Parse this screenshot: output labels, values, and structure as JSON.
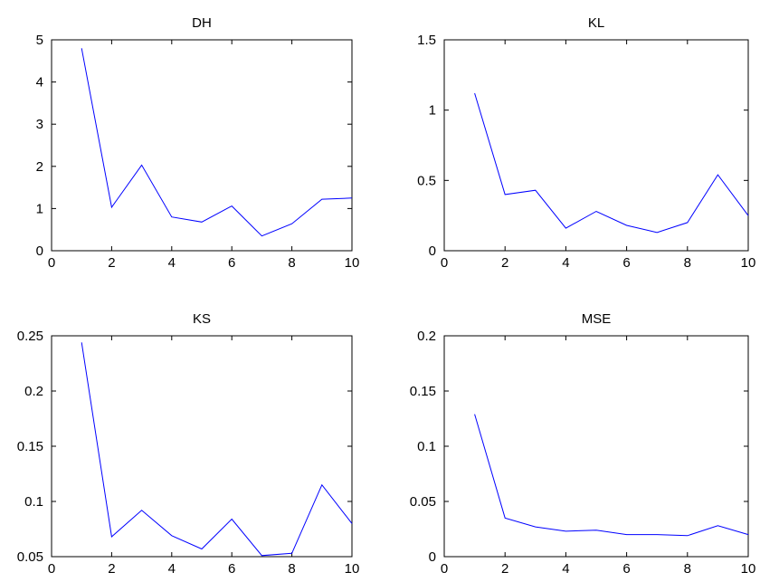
{
  "chart_data": [
    {
      "type": "line",
      "title": "DH",
      "xlabel": "",
      "ylabel": "",
      "xlim": [
        0,
        10
      ],
      "ylim": [
        0,
        5
      ],
      "xticks": [
        "0",
        "2",
        "4",
        "6",
        "8",
        "10"
      ],
      "yticks": [
        "0",
        "1",
        "2",
        "3",
        "4",
        "5"
      ],
      "series": [
        {
          "x": [
            1,
            2,
            3,
            4,
            5,
            6,
            7,
            8,
            9,
            10
          ],
          "y": [
            4.8,
            1.03,
            2.03,
            0.8,
            0.68,
            1.06,
            0.35,
            0.64,
            1.22,
            1.25
          ]
        }
      ],
      "color": "#0000ff"
    },
    {
      "type": "line",
      "title": "KL",
      "xlabel": "",
      "ylabel": "",
      "xlim": [
        0,
        10
      ],
      "ylim": [
        0,
        1.5
      ],
      "xticks": [
        "0",
        "2",
        "4",
        "6",
        "8",
        "10"
      ],
      "yticks": [
        "0",
        "0.5",
        "1",
        "1.5"
      ],
      "series": [
        {
          "x": [
            1,
            2,
            3,
            4,
            5,
            6,
            7,
            8,
            9,
            10
          ],
          "y": [
            1.12,
            0.4,
            0.43,
            0.16,
            0.28,
            0.18,
            0.13,
            0.2,
            0.54,
            0.25
          ]
        }
      ],
      "color": "#0000ff"
    },
    {
      "type": "line",
      "title": "KS",
      "xlabel": "",
      "ylabel": "",
      "xlim": [
        0,
        10
      ],
      "ylim": [
        0.05,
        0.25
      ],
      "xticks": [
        "0",
        "2",
        "4",
        "6",
        "8",
        "10"
      ],
      "yticks": [
        "0.05",
        "0.1",
        "0.15",
        "0.2",
        "0.25"
      ],
      "series": [
        {
          "x": [
            1,
            2,
            3,
            4,
            5,
            6,
            7,
            8,
            9,
            10
          ],
          "y": [
            0.244,
            0.068,
            0.092,
            0.069,
            0.057,
            0.084,
            0.051,
            0.053,
            0.115,
            0.08
          ]
        }
      ],
      "color": "#0000ff"
    },
    {
      "type": "line",
      "title": "MSE",
      "xlabel": "",
      "ylabel": "",
      "xlim": [
        0,
        10
      ],
      "ylim": [
        0,
        0.2
      ],
      "xticks": [
        "0",
        "2",
        "4",
        "6",
        "8",
        "10"
      ],
      "yticks": [
        "0",
        "0.05",
        "0.1",
        "0.15",
        "0.2"
      ],
      "series": [
        {
          "x": [
            1,
            2,
            3,
            4,
            5,
            6,
            7,
            8,
            9,
            10
          ],
          "y": [
            0.129,
            0.035,
            0.027,
            0.023,
            0.024,
            0.02,
            0.02,
            0.019,
            0.028,
            0.02
          ]
        }
      ],
      "color": "#0000ff"
    }
  ]
}
